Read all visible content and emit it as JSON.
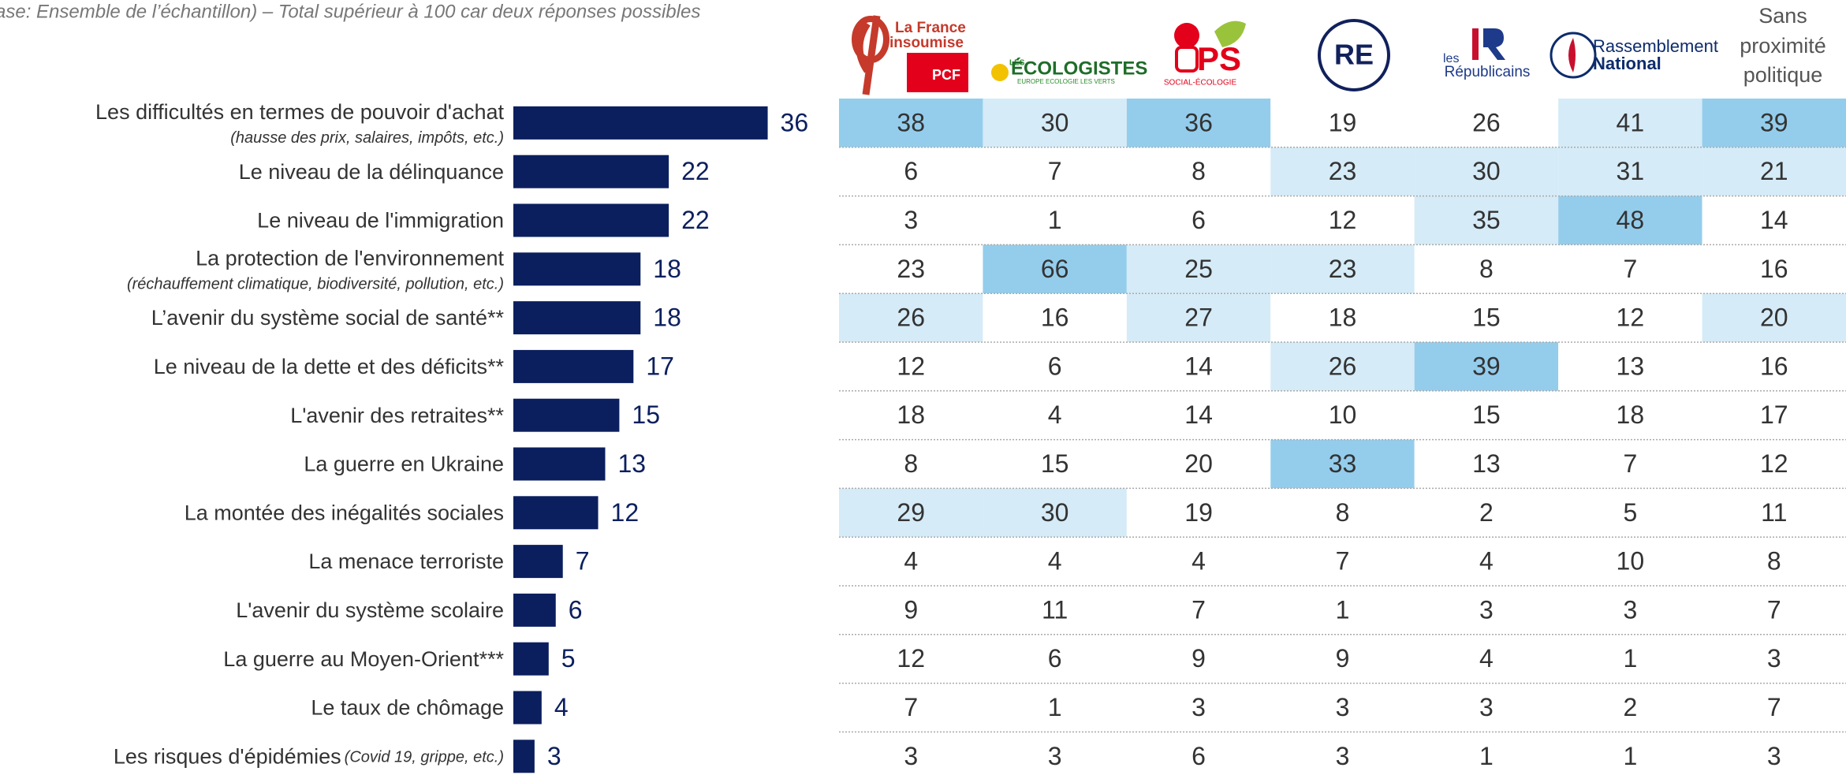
{
  "subtitle": "ase: Ensemble de l’échantillon) – Total supérieur à 100 car deux réponses possibles",
  "chart_data": {
    "type": "bar",
    "orientation": "horizontal",
    "color": "#0b1f5e",
    "categories": [
      "Les difficultés en termes de pouvoir d'achat",
      "Le niveau de la délinquance",
      "Le niveau de l'immigration",
      "La protection de l'environnement",
      "L’avenir du système social de santé**",
      "Le niveau de la dette et des déficits**",
      "L'avenir des retraites**",
      "La guerre en Ukraine",
      "La montée des inégalités sociales",
      "La menace terroriste",
      "L'avenir du système scolaire",
      "La guerre au Moyen-Orient***",
      "Le taux de chômage",
      "Les risques d'épidémies"
    ],
    "category_notes": [
      "(hausse des prix, salaires, impôts, etc.)",
      null,
      null,
      "(réchauffement climatique, biodiversité, pollution, etc.)",
      null,
      null,
      null,
      null,
      null,
      null,
      null,
      null,
      null,
      "(Covid 19, grippe, etc.)"
    ],
    "values": [
      36,
      22,
      22,
      18,
      18,
      17,
      15,
      13,
      12,
      7,
      6,
      5,
      4,
      3
    ]
  },
  "table": {
    "headers": {
      "lfi": [
        "La France",
        "insoumise",
        "PCF"
      ],
      "eco": [
        "LES",
        "ÉCOLOGISTES",
        "EUROPE ECOLOGIE LES VERTS"
      ],
      "ps": [
        "PS",
        "SOCIAL-ÉCOLOGIE"
      ],
      "re": [
        "RE"
      ],
      "lr": [
        "les",
        "Républicains"
      ],
      "rn": [
        "Rassemblement",
        "National"
      ],
      "none": [
        "Sans",
        "proximité",
        "politique"
      ]
    },
    "rows": [
      [
        38,
        30,
        36,
        19,
        26,
        41,
        39
      ],
      [
        6,
        7,
        8,
        23,
        30,
        31,
        21
      ],
      [
        3,
        1,
        6,
        12,
        35,
        48,
        14
      ],
      [
        23,
        66,
        25,
        23,
        8,
        7,
        16
      ],
      [
        26,
        16,
        27,
        18,
        15,
        12,
        20
      ],
      [
        12,
        6,
        14,
        26,
        39,
        13,
        16
      ],
      [
        18,
        4,
        14,
        10,
        15,
        18,
        17
      ],
      [
        8,
        15,
        20,
        33,
        13,
        7,
        12
      ],
      [
        29,
        30,
        19,
        8,
        2,
        5,
        11
      ],
      [
        4,
        4,
        4,
        7,
        4,
        10,
        8
      ],
      [
        9,
        11,
        7,
        1,
        3,
        3,
        7
      ],
      [
        12,
        6,
        9,
        9,
        4,
        1,
        3
      ],
      [
        7,
        1,
        3,
        3,
        3,
        2,
        7
      ],
      [
        3,
        3,
        6,
        3,
        1,
        1,
        3
      ]
    ],
    "highlight": [
      [
        2,
        1,
        2,
        0,
        0,
        1,
        2
      ],
      [
        0,
        0,
        0,
        1,
        1,
        1,
        1
      ],
      [
        0,
        0,
        0,
        0,
        1,
        2,
        0
      ],
      [
        0,
        2,
        1,
        1,
        0,
        0,
        0
      ],
      [
        1,
        0,
        1,
        0,
        0,
        0,
        1
      ],
      [
        0,
        0,
        0,
        1,
        2,
        0,
        0
      ],
      [
        0,
        0,
        0,
        0,
        0,
        0,
        0
      ],
      [
        0,
        0,
        0,
        2,
        0,
        0,
        0
      ],
      [
        1,
        1,
        0,
        0,
        0,
        0,
        0
      ],
      [
        0,
        0,
        0,
        0,
        0,
        0,
        0
      ],
      [
        0,
        0,
        0,
        0,
        0,
        0,
        0
      ],
      [
        0,
        0,
        0,
        0,
        0,
        0,
        0
      ],
      [
        0,
        0,
        0,
        0,
        0,
        0,
        0
      ],
      [
        0,
        0,
        0,
        0,
        0,
        0,
        0
      ]
    ],
    "highlight_colors": [
      "#ffffff",
      "#d5ebf7",
      "#94cdec"
    ]
  }
}
